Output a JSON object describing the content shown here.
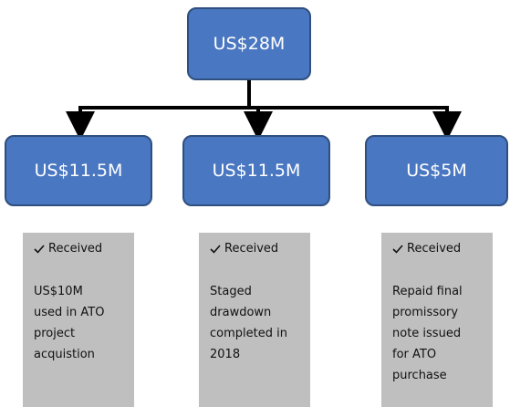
{
  "root": {
    "label": "US$28M"
  },
  "nodes": [
    {
      "label": "US$11.5M",
      "status": "Received",
      "note": [
        "US$10M",
        "used in ATO",
        "project",
        "acquistion"
      ]
    },
    {
      "label": "US$11.5M",
      "status": "Received",
      "note": [
        "Staged",
        "drawdown",
        "completed in",
        "2018"
      ]
    },
    {
      "label": "US$5M",
      "status": "Received",
      "note": [
        "Repaid final",
        "promissory",
        "note issued",
        "for ATO",
        "purchase"
      ]
    }
  ]
}
